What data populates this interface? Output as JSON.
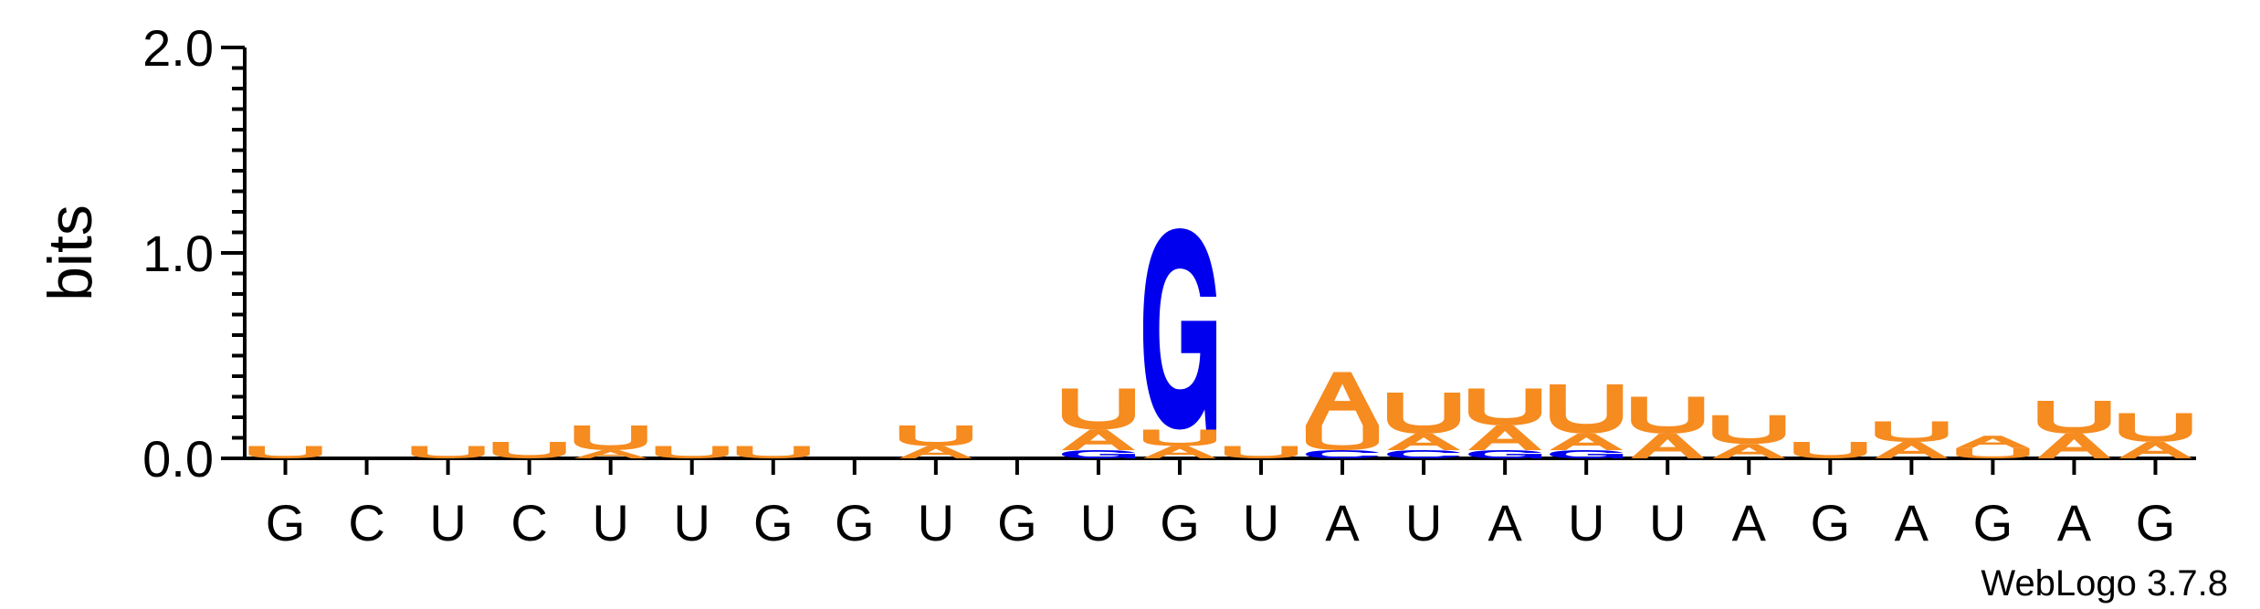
{
  "chart_data": {
    "type": "sequence-logo",
    "title": "",
    "xlabel": "",
    "ylabel": "bits",
    "ylim": [
      0,
      2.0
    ],
    "yticks": [
      "0.0",
      "1.0",
      "2.0"
    ],
    "grid": false,
    "credit": "WebLogo 3.7.8",
    "colors": {
      "A": "#f68b1f",
      "U": "#f68b1f",
      "G": "#0000ee",
      "C": "#0000ee"
    },
    "positions": [
      {
        "label": "G",
        "stack": [
          {
            "letter": "U",
            "height": 0.06
          }
        ]
      },
      {
        "label": "C",
        "stack": []
      },
      {
        "label": "U",
        "stack": [
          {
            "letter": "U",
            "height": 0.06
          }
        ]
      },
      {
        "label": "C",
        "stack": [
          {
            "letter": "U",
            "height": 0.08
          }
        ]
      },
      {
        "label": "U",
        "stack": [
          {
            "letter": "A",
            "height": 0.04
          },
          {
            "letter": "U",
            "height": 0.12
          }
        ]
      },
      {
        "label": "U",
        "stack": [
          {
            "letter": "U",
            "height": 0.06
          }
        ]
      },
      {
        "label": "G",
        "stack": [
          {
            "letter": "U",
            "height": 0.06
          }
        ]
      },
      {
        "label": "G",
        "stack": []
      },
      {
        "label": "U",
        "stack": [
          {
            "letter": "A",
            "height": 0.06
          },
          {
            "letter": "U",
            "height": 0.1
          }
        ]
      },
      {
        "label": "G",
        "stack": []
      },
      {
        "label": "U",
        "stack": [
          {
            "letter": "G",
            "height": 0.04
          },
          {
            "letter": "A",
            "height": 0.1
          },
          {
            "letter": "U",
            "height": 0.2
          }
        ]
      },
      {
        "label": "G",
        "stack": [
          {
            "letter": "A",
            "height": 0.06
          },
          {
            "letter": "U",
            "height": 0.08
          },
          {
            "letter": "G",
            "height": 0.98
          }
        ]
      },
      {
        "label": "U",
        "stack": [
          {
            "letter": "U",
            "height": 0.06
          }
        ]
      },
      {
        "label": "A",
        "stack": [
          {
            "letter": "C",
            "height": 0.04
          },
          {
            "letter": "U",
            "height": 0.12
          },
          {
            "letter": "A",
            "height": 0.26
          }
        ]
      },
      {
        "label": "U",
        "stack": [
          {
            "letter": "C",
            "height": 0.04
          },
          {
            "letter": "A",
            "height": 0.08
          },
          {
            "letter": "U",
            "height": 0.2
          }
        ]
      },
      {
        "label": "A",
        "stack": [
          {
            "letter": "G",
            "height": 0.04
          },
          {
            "letter": "A",
            "height": 0.12
          },
          {
            "letter": "U",
            "height": 0.18
          }
        ]
      },
      {
        "label": "U",
        "stack": [
          {
            "letter": "G",
            "height": 0.04
          },
          {
            "letter": "A",
            "height": 0.08
          },
          {
            "letter": "U",
            "height": 0.24
          }
        ]
      },
      {
        "label": "U",
        "stack": [
          {
            "letter": "A",
            "height": 0.12
          },
          {
            "letter": "U",
            "height": 0.18
          }
        ]
      },
      {
        "label": "A",
        "stack": [
          {
            "letter": "A",
            "height": 0.07
          },
          {
            "letter": "U",
            "height": 0.14
          }
        ]
      },
      {
        "label": "G",
        "stack": [
          {
            "letter": "U",
            "height": 0.08
          }
        ]
      },
      {
        "label": "A",
        "stack": [
          {
            "letter": "A",
            "height": 0.08
          },
          {
            "letter": "U",
            "height": 0.1
          }
        ]
      },
      {
        "label": "G",
        "stack": [
          {
            "letter": "U",
            "height": 0.05
          },
          {
            "letter": "A",
            "height": 0.06
          }
        ]
      },
      {
        "label": "A",
        "stack": [
          {
            "letter": "A",
            "height": 0.12
          },
          {
            "letter": "U",
            "height": 0.16
          }
        ]
      },
      {
        "label": "G",
        "stack": [
          {
            "letter": "A",
            "height": 0.08
          },
          {
            "letter": "U",
            "height": 0.14
          }
        ]
      }
    ]
  }
}
